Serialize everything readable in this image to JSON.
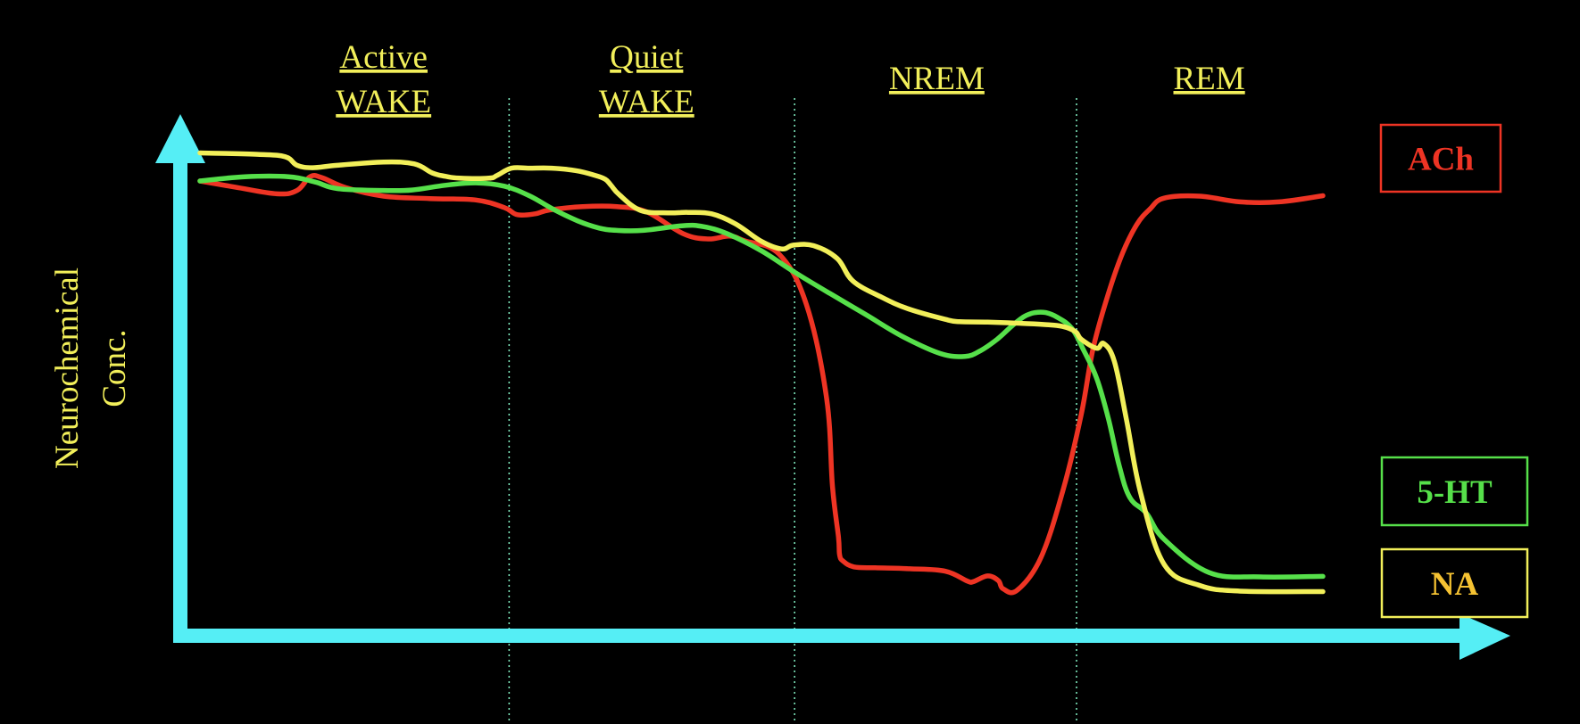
{
  "chart_data": {
    "type": "line",
    "title": "",
    "ylabel": [
      "Neurochemical",
      "Conc."
    ],
    "xlabel": "",
    "x_range": [
      0,
      100
    ],
    "y_range": [
      0,
      100
    ],
    "stages": [
      {
        "label": [
          "Active",
          "WAKE"
        ],
        "x_center": 15.5
      },
      {
        "label": [
          "Quiet",
          "WAKE"
        ],
        "x_center": 37.7
      },
      {
        "label": [
          "NREM"
        ],
        "x_center": 62.2
      },
      {
        "label": [
          "REM"
        ],
        "x_center": 85.2
      }
    ],
    "boundaries": [
      26.1,
      50.2,
      74.0
    ],
    "colors": {
      "axis": "#55eef5",
      "divider": "#7be3b8",
      "ach": "#ee3424",
      "ht": "#56e04a",
      "na": "#f2ef5a"
    },
    "series": [
      {
        "name": "ACh",
        "color": "#ee3424",
        "x": [
          0,
          3,
          6.5,
          8.2,
          9.3,
          10.3,
          12.3,
          15.5,
          19.4,
          23.3,
          25.7,
          26.8,
          28.3,
          29.5,
          32.3,
          35.2,
          37.7,
          40.8,
          42.9,
          44.7,
          46,
          48.9,
          51.2,
          52.9,
          53.4,
          53.9,
          54,
          54.3,
          55.2,
          57,
          59.9,
          62.9,
          64.8,
          65.3,
          66.5,
          67.4,
          67.8,
          69,
          71,
          72.9,
          74.4,
          75.4,
          76.7,
          77.9,
          79.1,
          80.2,
          81.4,
          84.4,
          87.8,
          91.1,
          94.8
        ],
        "y": [
          95.5,
          94.2,
          92.8,
          93.5,
          96.4,
          96.2,
          94.1,
          92.3,
          91.8,
          91.5,
          89.9,
          88.4,
          88.6,
          89.4,
          90.1,
          90.1,
          89,
          84.4,
          83.3,
          83.9,
          82.9,
          80.1,
          69.5,
          49.8,
          31.2,
          20.6,
          16.8,
          15.5,
          14.3,
          14.1,
          13.9,
          13.4,
          11.3,
          11.2,
          12.4,
          11.4,
          9.7,
          9.4,
          16.3,
          30.8,
          46.4,
          60.3,
          71.9,
          80.4,
          86.4,
          89.6,
          91.9,
          92.3,
          91.1,
          91.1,
          92.4
        ]
      },
      {
        "name": "5-HT",
        "color": "#56e04a",
        "x": [
          0,
          3.8,
          7.5,
          9.7,
          11.6,
          15.5,
          17.9,
          20.7,
          23.3,
          25.7,
          27.8,
          29.8,
          31.9,
          33.7,
          35.2,
          37.4,
          40.8,
          42.5,
          44.5,
          47.4,
          50.2,
          53.2,
          56.2,
          59.3,
          62.5,
          64.6,
          65.9,
          67.3,
          68.6,
          69.6,
          70.5,
          71.4,
          72.4,
          73.6,
          74.6,
          75.7,
          76.7,
          77.6,
          78.5,
          79.9,
          81.4,
          85.2,
          89.5,
          94.8
        ],
        "y": [
          95.5,
          96.4,
          96.4,
          95.3,
          93.9,
          93.5,
          93.6,
          94.6,
          95.1,
          94.4,
          92.4,
          89.6,
          87.1,
          85.6,
          85.1,
          85.1,
          86.1,
          85.9,
          84.4,
          80.8,
          76.3,
          71.8,
          67.4,
          62.8,
          59.2,
          58.6,
          59.8,
          62.2,
          65.1,
          67,
          67.8,
          67.8,
          66.8,
          64.5,
          59.9,
          54,
          45.4,
          35.6,
          28.9,
          25.6,
          20.1,
          13.1,
          12.2,
          12.3
        ]
      },
      {
        "name": "NA",
        "color": "#f2ef5a",
        "x": [
          0,
          4.9,
          7.2,
          8.2,
          9.5,
          11.6,
          15.5,
          18.1,
          19.6,
          20.7,
          21.9,
          24.4,
          25.1,
          26.3,
          27.8,
          29.7,
          31.7,
          33.2,
          34.2,
          34.7,
          35.4,
          37.2,
          39.5,
          41.2,
          43.2,
          45.2,
          47.4,
          49.1,
          50.1,
          51.8,
          53.8,
          55.1,
          57.5,
          59.8,
          62.9,
          64.1,
          66.5,
          68.8,
          71.3,
          72.8,
          73.9,
          74.4,
          75.7,
          76.3,
          77.2,
          78.2,
          79.4,
          81.4,
          84.4,
          87.8,
          94.8
        ],
        "y": [
          101.4,
          101.1,
          100.6,
          98.8,
          98.3,
          98.8,
          99.5,
          99.1,
          97.2,
          96.5,
          96.1,
          96.1,
          96.7,
          98.2,
          98.2,
          98.2,
          97.7,
          96.8,
          95.9,
          94.6,
          92.6,
          89.3,
          88.8,
          88.9,
          88.6,
          86.5,
          82.8,
          81.2,
          82,
          81.9,
          79.2,
          74.5,
          71.1,
          68.6,
          66.4,
          65.9,
          65.8,
          65.6,
          65.3,
          64.9,
          63.8,
          62.2,
          60.3,
          61.3,
          57.5,
          45.5,
          30,
          14.8,
          10.4,
          9.2,
          9.1
        ]
      }
    ],
    "legend": [
      {
        "label": "ACh",
        "color": "#ee3424"
      },
      {
        "label": "5-HT",
        "color": "#56e04a"
      },
      {
        "label": "NA",
        "color": "#f2ef5a"
      }
    ]
  }
}
